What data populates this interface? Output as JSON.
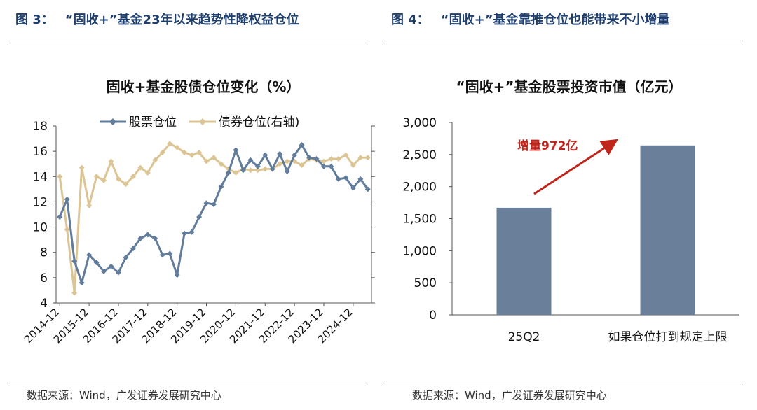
{
  "figures": {
    "left": {
      "number": "图 3：",
      "caption": "“固收+”基金23年以来趋势性降权益仓位",
      "source": "数据来源：Wind，广发证券发展研究中心"
    },
    "right": {
      "number": "图 4：",
      "caption": "“固收+”基金靠推仓位也能带来不小增量",
      "source": "数据来源：Wind，广发证券发展研究中心"
    }
  },
  "chart_data": [
    {
      "type": "line",
      "title": "固收+基金股债仓位变化（%）",
      "x_ticks": [
        "2014-12",
        "2015-12",
        "2016-12",
        "2017-12",
        "2018-12",
        "2019-12",
        "2020-12",
        "2021-12",
        "2022-12",
        "2023-12",
        "2024-12"
      ],
      "x": [
        "2014-12",
        "2015-03",
        "2015-06",
        "2015-09",
        "2015-12",
        "2016-03",
        "2016-06",
        "2016-09",
        "2016-12",
        "2017-03",
        "2017-06",
        "2017-09",
        "2017-12",
        "2018-03",
        "2018-06",
        "2018-09",
        "2018-12",
        "2019-03",
        "2019-06",
        "2019-09",
        "2019-12",
        "2020-03",
        "2020-06",
        "2020-09",
        "2020-12",
        "2021-03",
        "2021-06",
        "2021-09",
        "2021-12",
        "2022-03",
        "2022-06",
        "2022-09",
        "2022-12",
        "2023-03",
        "2023-06",
        "2023-09",
        "2023-12",
        "2024-03",
        "2024-06",
        "2024-09",
        "2024-12",
        "2025-03",
        "2025-06"
      ],
      "ylim": [
        4,
        18
      ],
      "yticks": [
        4,
        6,
        8,
        10,
        12,
        14,
        16,
        18
      ],
      "legend": "top",
      "series": [
        {
          "name": "股票仓位",
          "axis": "left",
          "color": "#627c9c",
          "marker": "diamond",
          "values": [
            10.8,
            12.2,
            7.3,
            5.6,
            7.8,
            7.2,
            6.5,
            6.9,
            6.4,
            7.6,
            8.3,
            9.1,
            9.4,
            9.1,
            7.8,
            7.9,
            6.2,
            9.5,
            9.6,
            10.8,
            11.9,
            11.8,
            13.2,
            14.3,
            16.1,
            14.5,
            15.3,
            14.8,
            15.7,
            14.6,
            15.8,
            14.4,
            15.7,
            16.5,
            15.5,
            15.4,
            14.8,
            14.8,
            13.8,
            13.9,
            13.1,
            13.8,
            13.0
          ]
        },
        {
          "name": "债券仓位(右轴)",
          "axis": "right",
          "color": "#dcc594",
          "marker": "diamond",
          "values": [
            14.0,
            9.8,
            4.8,
            14.7,
            11.7,
            14.0,
            13.7,
            15.2,
            13.8,
            13.4,
            14.0,
            14.7,
            14.3,
            15.3,
            15.9,
            16.6,
            16.3,
            15.9,
            15.7,
            15.9,
            15.2,
            15.5,
            15.0,
            14.6,
            14.3,
            14.6,
            14.5,
            14.5,
            14.6,
            14.6,
            15.0,
            15.2,
            15.2,
            14.9,
            15.4,
            15.3,
            15.2,
            15.4,
            15.4,
            15.7,
            14.9,
            15.5,
            15.5
          ]
        }
      ]
    },
    {
      "type": "bar",
      "title": "“固收+”基金股票投资市值（亿元）",
      "categories": [
        "25Q2",
        "如果仓位打到规定上限"
      ],
      "values": [
        1670,
        2642
      ],
      "ylim": [
        0,
        3000
      ],
      "yticks": [
        0,
        500,
        1000,
        1500,
        2000,
        2500,
        3000
      ],
      "ytick_labels": [
        "0",
        "500",
        "1,000",
        "1,500",
        "2,000",
        "2,500",
        "3,000"
      ],
      "color": "#6a7f99",
      "annotation": {
        "text": "增量972亿",
        "color": "#c0251b"
      }
    }
  ]
}
